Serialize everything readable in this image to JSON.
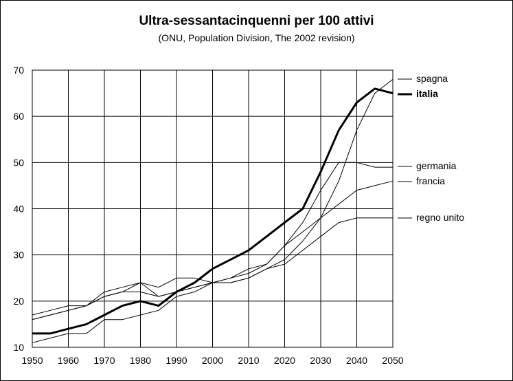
{
  "chart_data": {
    "type": "line",
    "title": "Ultra-sessantacinquenni per 100 attivi",
    "subtitle": "(ONU, Population Division, The 2002 revision)",
    "xlabel": "",
    "ylabel": "",
    "xlim": [
      1950,
      2050
    ],
    "ylim": [
      10,
      70
    ],
    "x_ticks": [
      1950,
      1960,
      1970,
      1980,
      1990,
      2000,
      2010,
      2020,
      2030,
      2040,
      2050
    ],
    "y_ticks": [
      10,
      20,
      30,
      40,
      50,
      60,
      70
    ],
    "grid": "horizontal and vertical",
    "legend_position": "right (labels at line ends)",
    "x": [
      1950,
      1955,
      1960,
      1965,
      1970,
      1975,
      1980,
      1985,
      1990,
      1995,
      2000,
      2005,
      2010,
      2015,
      2020,
      2025,
      2030,
      2035,
      2040,
      2045,
      2050
    ],
    "series": [
      {
        "name": "spagna",
        "bold": false,
        "values": [
          11.0,
          12.0,
          13.0,
          13.0,
          16.0,
          16.0,
          17.0,
          18.0,
          21.0,
          22.0,
          24.0,
          24.0,
          25.0,
          27.0,
          29.0,
          33.0,
          38.0,
          46.0,
          57.0,
          65.0,
          68.0
        ]
      },
      {
        "name": "italia",
        "bold": true,
        "values": [
          13.0,
          13.0,
          14.0,
          15.0,
          17.0,
          19.0,
          20.0,
          19.0,
          22.0,
          24.0,
          27.0,
          29.0,
          31.0,
          34.0,
          37.0,
          40.0,
          48.0,
          57.0,
          63.0,
          66.0,
          65.0
        ]
      },
      {
        "name": "germania",
        "bold": false,
        "values": [
          16.0,
          17.0,
          18.0,
          19.0,
          21.0,
          22.0,
          24.0,
          21.0,
          22.0,
          23.0,
          24.0,
          25.0,
          27.0,
          28.0,
          32.0,
          37.0,
          44.0,
          50.0,
          50.0,
          49.0,
          49.0
        ]
      },
      {
        "name": "francia",
        "bold": false,
        "values": [
          17.0,
          18.0,
          19.0,
          19.0,
          21.0,
          22.0,
          22.0,
          21.0,
          22.0,
          23.0,
          24.0,
          25.0,
          26.0,
          28.0,
          32.0,
          35.0,
          38.0,
          41.0,
          44.0,
          45.0,
          46.0
        ]
      },
      {
        "name": "regno unito",
        "bold": false,
        "values": [
          16.0,
          17.0,
          18.0,
          19.0,
          22.0,
          23.0,
          24.0,
          23.0,
          25.0,
          25.0,
          24.0,
          24.0,
          25.0,
          27.0,
          28.0,
          31.0,
          34.0,
          37.0,
          38.0,
          38.0,
          38.0
        ]
      }
    ]
  }
}
